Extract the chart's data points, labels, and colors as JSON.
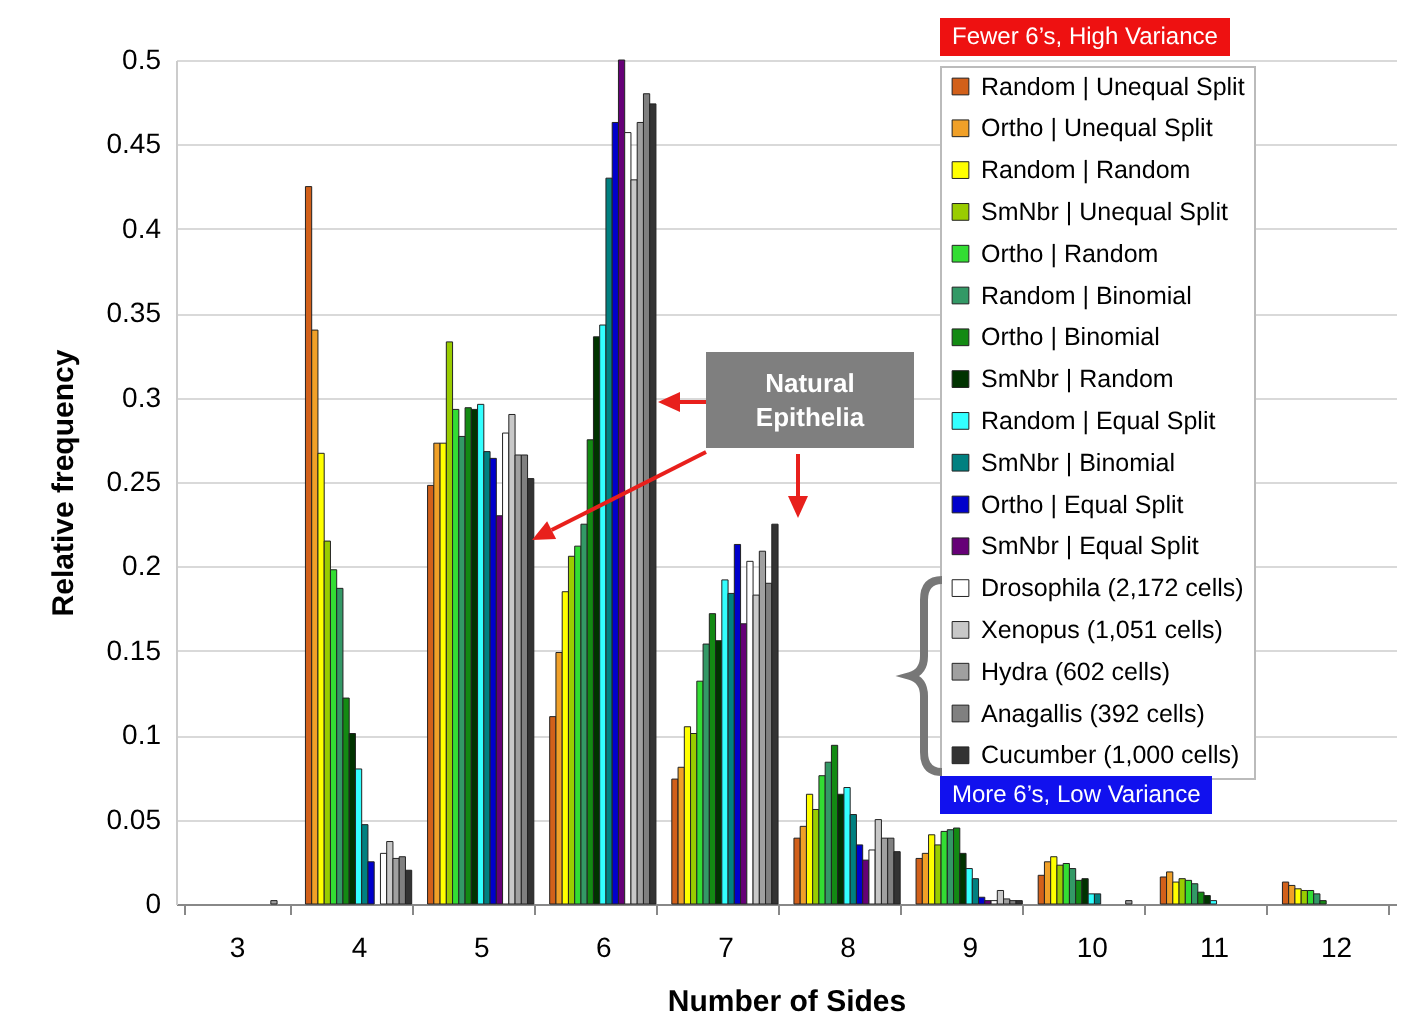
{
  "chart_data": {
    "type": "bar",
    "xlabel": "Number of Sides",
    "ylabel": "Relative frequency",
    "categories": [
      "3",
      "4",
      "5",
      "6",
      "7",
      "8",
      "9",
      "10",
      "11",
      "12"
    ],
    "series": [
      {
        "name": "Random | Unequal Split",
        "color": "#d2601a",
        "values": [
          0,
          0.425,
          0.248,
          0.111,
          0.074,
          0.039,
          0.027,
          0.017,
          0.016,
          0.013
        ]
      },
      {
        "name": "Ortho | Unequal Split",
        "color": "#f0a028",
        "values": [
          0,
          0.34,
          0.273,
          0.149,
          0.081,
          0.046,
          0.03,
          0.025,
          0.019,
          0.011
        ]
      },
      {
        "name": "Random | Random",
        "color": "#ffff00",
        "values": [
          0,
          0.267,
          0.273,
          0.185,
          0.105,
          0.065,
          0.041,
          0.028,
          0.013,
          0.009
        ]
      },
      {
        "name": "SmNbr | Unequal Split",
        "color": "#99cc00",
        "values": [
          0,
          0.215,
          0.333,
          0.206,
          0.101,
          0.056,
          0.035,
          0.023,
          0.015,
          0.008
        ]
      },
      {
        "name": "Ortho | Random",
        "color": "#33dd33",
        "values": [
          0,
          0.198,
          0.293,
          0.212,
          0.132,
          0.076,
          0.043,
          0.024,
          0.014,
          0.008
        ]
      },
      {
        "name": "Random | Binomial",
        "color": "#339966",
        "values": [
          0,
          0.187,
          0.277,
          0.225,
          0.154,
          0.084,
          0.044,
          0.021,
          0.012,
          0.006
        ]
      },
      {
        "name": "Ortho | Binomial",
        "color": "#138a13",
        "values": [
          0,
          0.122,
          0.294,
          0.275,
          0.172,
          0.094,
          0.045,
          0.014,
          0.007,
          0.002
        ]
      },
      {
        "name": "SmNbr | Random",
        "color": "#003300",
        "values": [
          0,
          0.101,
          0.293,
          0.336,
          0.156,
          0.065,
          0.03,
          0.015,
          0.005,
          0
        ]
      },
      {
        "name": "Random | Equal Split",
        "color": "#33ffff",
        "values": [
          0,
          0.08,
          0.296,
          0.343,
          0.192,
          0.069,
          0.021,
          0.006,
          0.002,
          0
        ]
      },
      {
        "name": "SmNbr | Binomial",
        "color": "#008080",
        "values": [
          0,
          0.047,
          0.268,
          0.43,
          0.184,
          0.053,
          0.015,
          0.006,
          0,
          0
        ]
      },
      {
        "name": "Ortho | Equal Split",
        "color": "#0000cc",
        "values": [
          0,
          0.025,
          0.264,
          0.463,
          0.213,
          0.035,
          0.004,
          0,
          0,
          0
        ]
      },
      {
        "name": "SmNbr | Equal Split",
        "color": "#660077",
        "values": [
          0,
          0,
          0.23,
          0.5,
          0.166,
          0.026,
          0.002,
          0,
          0,
          0
        ]
      },
      {
        "name": "Drosophila (2,172 cells)",
        "color": "#ffffff",
        "values": [
          0,
          0.03,
          0.279,
          0.457,
          0.203,
          0.032,
          0.002,
          0,
          0,
          0
        ]
      },
      {
        "name": "Xenopus (1,051 cells)",
        "color": "#c8c8c8",
        "values": [
          0,
          0.037,
          0.29,
          0.429,
          0.183,
          0.05,
          0.008,
          0,
          0,
          0
        ]
      },
      {
        "name": "Hydra (602 cells)",
        "color": "#a0a0a0",
        "values": [
          0.002,
          0.027,
          0.266,
          0.463,
          0.209,
          0.039,
          0.003,
          0.002,
          0,
          0
        ]
      },
      {
        "name": "Anagallis (392 cells)",
        "color": "#808080",
        "values": [
          0,
          0.028,
          0.266,
          0.48,
          0.19,
          0.039,
          0.002,
          0,
          0,
          0
        ]
      },
      {
        "name": "Cucumber (1,000 cells)",
        "color": "#333333",
        "values": [
          0,
          0.02,
          0.252,
          0.474,
          0.225,
          0.031,
          0.002,
          0,
          0,
          0
        ]
      }
    ],
    "ylim": [
      0,
      0.5
    ],
    "yticks": [
      0,
      0.05,
      0.1,
      0.15,
      0.2,
      0.25,
      0.3,
      0.35,
      0.4,
      0.45,
      0.5
    ],
    "grid": "y",
    "legend": "top right",
    "annotations": [
      "Fewer 6’s, High Variance",
      "Natural Epithelia",
      "More 6’s, Low Variance"
    ]
  }
}
